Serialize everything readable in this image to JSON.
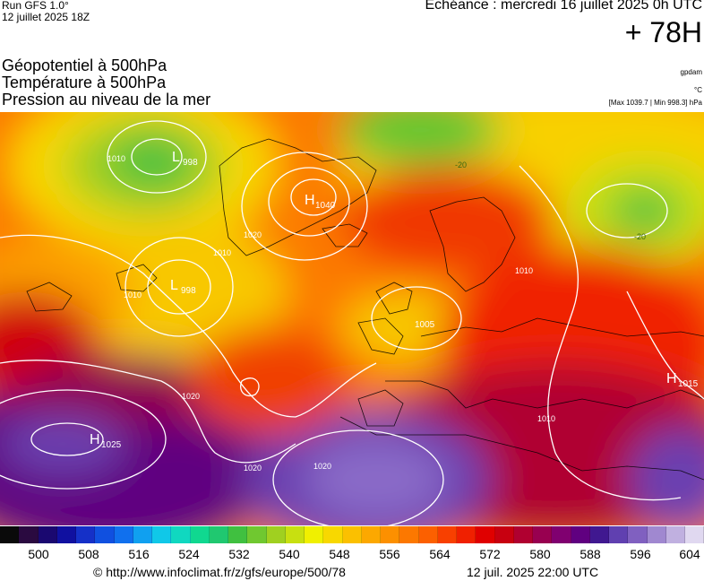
{
  "header": {
    "run_label": "Run GFS 1.0°",
    "run_date": "12 juillet 2025 18Z",
    "echeance": "Echéance : mercredi 16 juillet 2025 0h UTC",
    "lead_time": "+ 78H"
  },
  "fields": {
    "line1": "Géopotentiel à 500hPa",
    "line2": "Température à 500hPa",
    "line3": "Pression au niveau de la mer"
  },
  "units": {
    "geopotential": "gpdam",
    "temperature": "°C",
    "pressure_range": "[Max 1039.7 | Min 998.3] hPa"
  },
  "map": {
    "pressure_centers": [
      {
        "type": "L",
        "value": "998"
      },
      {
        "type": "L",
        "value": "998"
      },
      {
        "type": "H",
        "value": "1040"
      },
      {
        "type": "H",
        "value": "1025"
      },
      {
        "type": "H",
        "value": "1015"
      },
      {
        "type": "L",
        "value": "1005"
      }
    ],
    "isobar_labels": [
      "1010",
      "1010",
      "1020",
      "1020",
      "1010",
      "1020",
      "1020",
      "1010",
      "1010"
    ],
    "isotherm_labels": [
      "-20",
      "-20"
    ]
  },
  "colorbar": {
    "colors": [
      "#0a0a0a",
      "#2a0a40",
      "#1a0870",
      "#1010a0",
      "#1530c8",
      "#1050e0",
      "#1070ee",
      "#10a0f0",
      "#10c8e8",
      "#10d8c0",
      "#10d890",
      "#20c870",
      "#40c040",
      "#70c830",
      "#a0d020",
      "#c8e010",
      "#f0f000",
      "#f8d800",
      "#fbc000",
      "#fca800",
      "#fc9000",
      "#fc7800",
      "#fc6000",
      "#f84000",
      "#f02000",
      "#e00000",
      "#c80010",
      "#b00030",
      "#980050",
      "#800070",
      "#600080",
      "#401890",
      "#6040b0",
      "#8060c0",
      "#a088d0",
      "#c0b0e0",
      "#e0d8f0"
    ],
    "ticks": [
      "500",
      "508",
      "516",
      "524",
      "532",
      "540",
      "548",
      "556",
      "564",
      "572",
      "580",
      "588",
      "596",
      "604"
    ]
  },
  "footer": {
    "url": "© http://www.infoclimat.fr/z/gfs/europe/500/78",
    "timestamp": "12 juil. 2025 22:00 UTC"
  },
  "accent_colors": {
    "isobar": "#ffffff",
    "coastline": "#000000"
  }
}
